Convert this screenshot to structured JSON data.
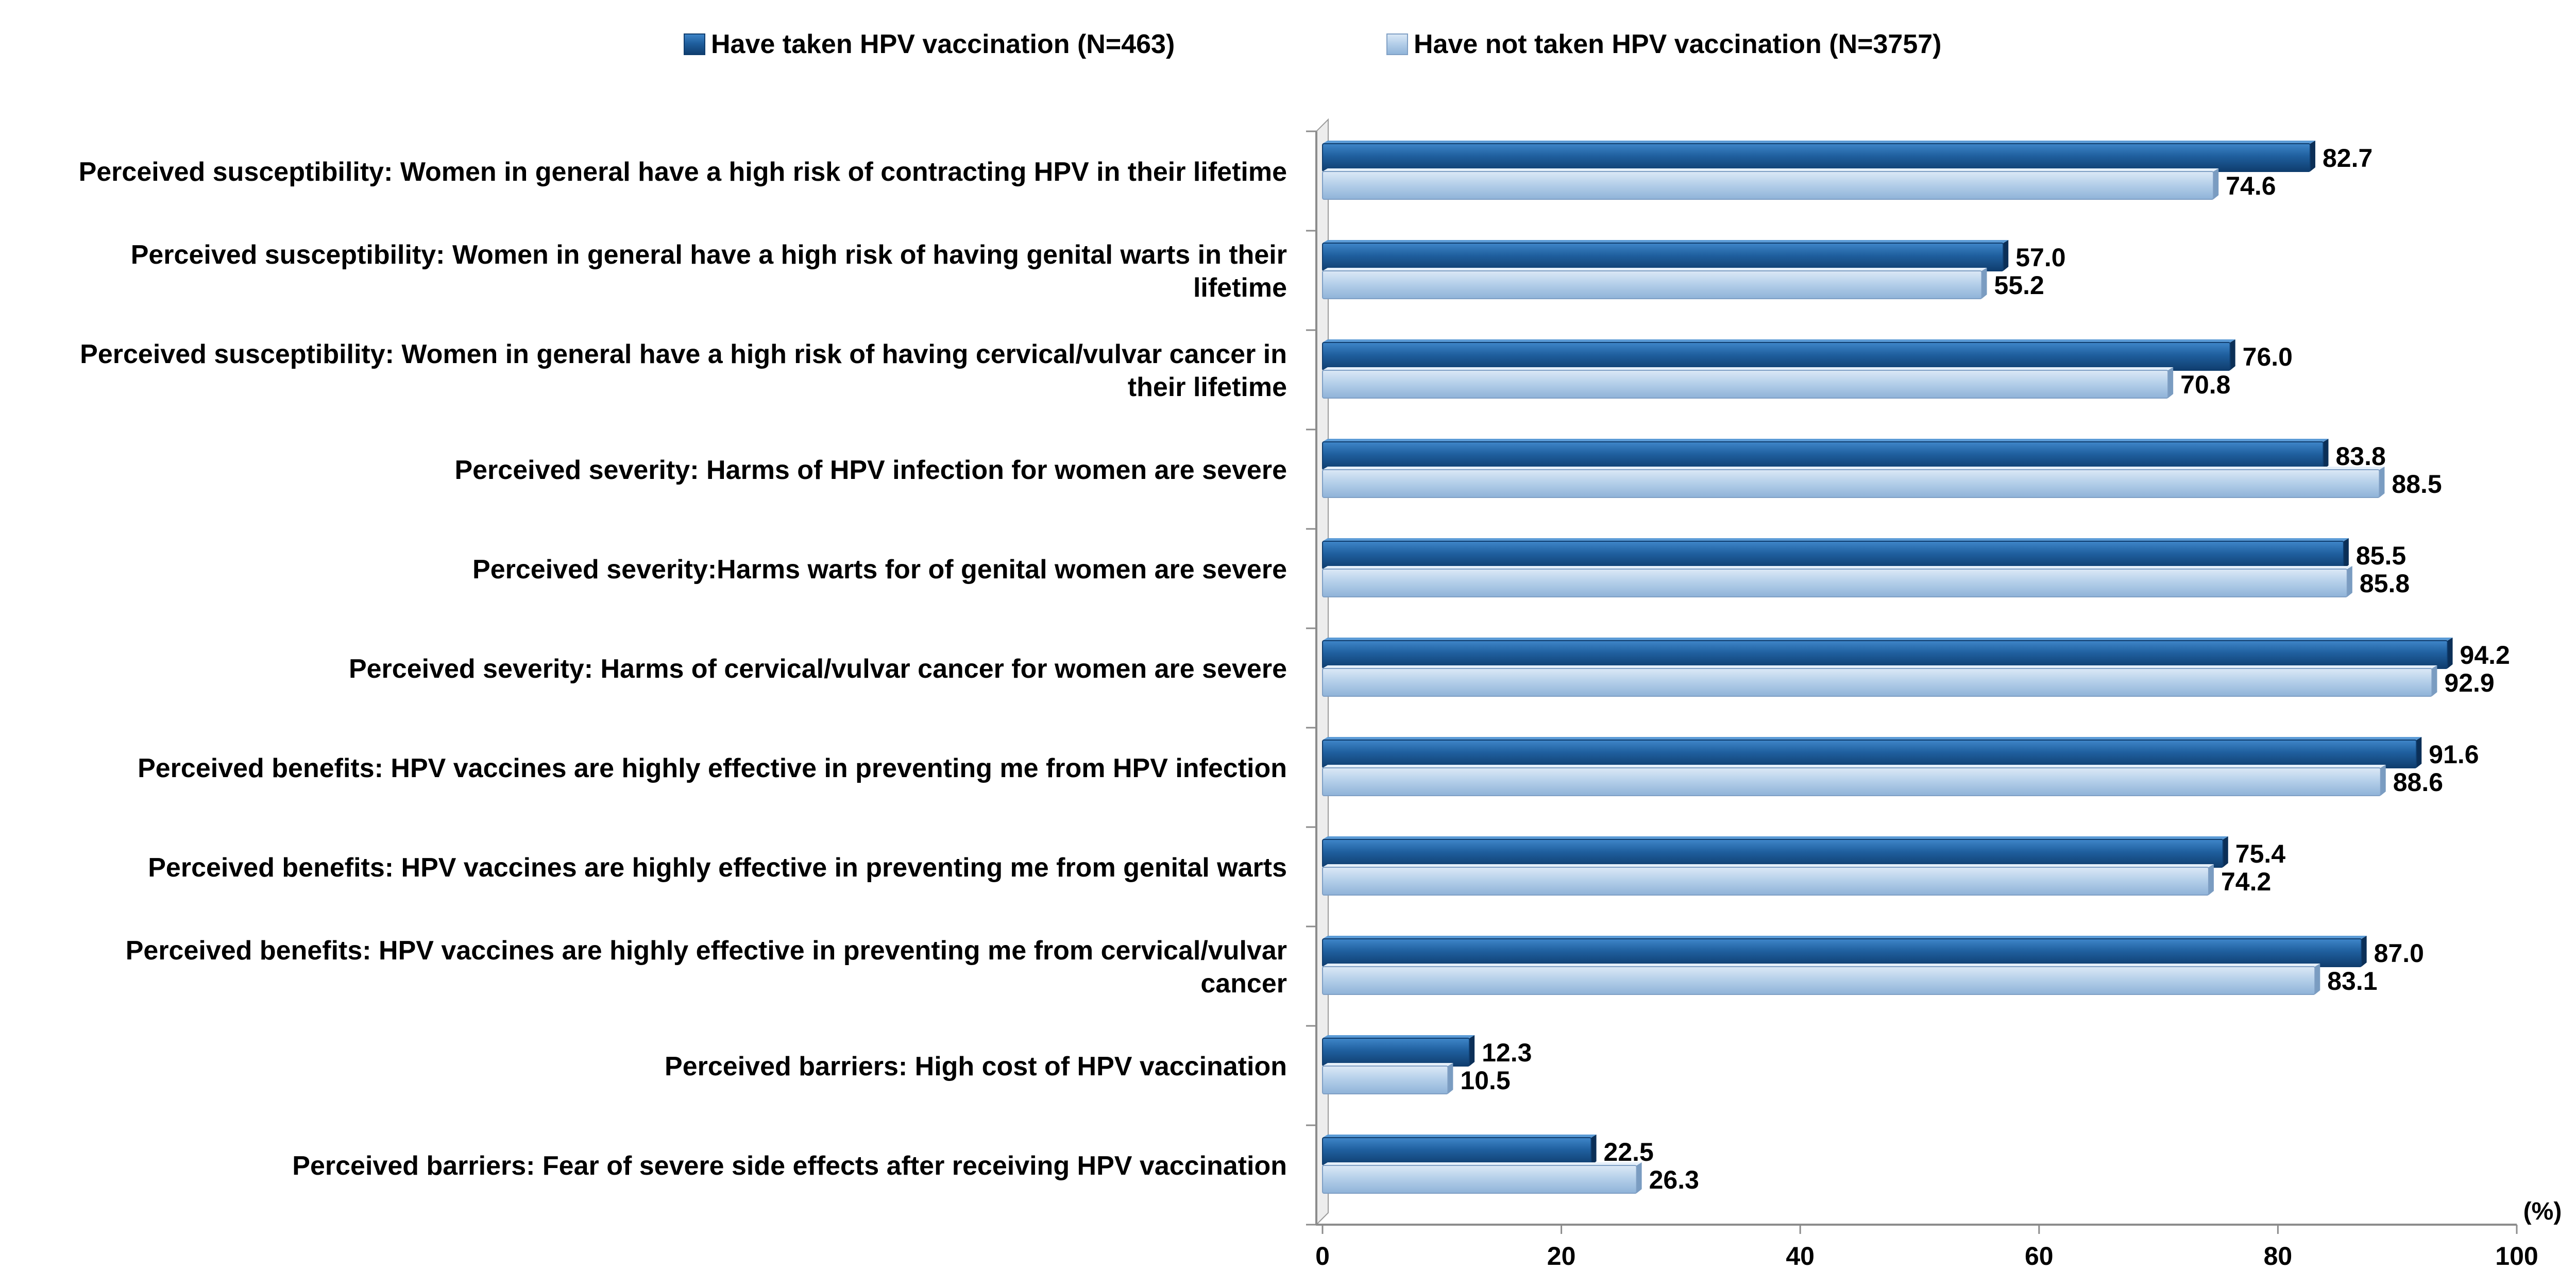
{
  "chart_data": {
    "type": "bar",
    "orientation": "horizontal",
    "title": "",
    "xlabel": "",
    "ylabel": "",
    "unit_label": "(%)",
    "xlim": [
      0,
      100
    ],
    "xticks": [
      0,
      20,
      40,
      60,
      80,
      100
    ],
    "grid": false,
    "legend_position": "top",
    "categories": [
      [
        "Perceived susceptibility: Women in general have a high risk of contracting HPV in their lifetime"
      ],
      [
        "Perceived susceptibility: Women in general have a high risk of having genital warts in their",
        "lifetime"
      ],
      [
        "Perceived susceptibility: Women in general have a high risk of having cervical/vulvar cancer in",
        "their lifetime"
      ],
      [
        "Perceived severity: Harms of HPV infection for women are severe"
      ],
      [
        "Perceived severity:Harms warts for of genital women are severe"
      ],
      [
        "Perceived severity: Harms of cervical/vulvar cancer for women are severe"
      ],
      [
        "Perceived benefits: HPV vaccines are highly effective in preventing me from HPV infection"
      ],
      [
        "Perceived benefits: HPV vaccines are highly effective in preventing me from genital warts"
      ],
      [
        "Perceived benefits: HPV vaccines are highly effective in preventing me from cervical/vulvar",
        "cancer"
      ],
      [
        "Perceived barriers: High cost of HPV vaccination"
      ],
      [
        "Perceived barriers: Fear of severe side effects after receiving HPV vaccination"
      ]
    ],
    "series": [
      {
        "name": "Have taken HPV vaccination (N=463)",
        "color": "#1f5f9e",
        "values": [
          82.7,
          57.0,
          76.0,
          83.8,
          85.5,
          94.2,
          91.6,
          75.4,
          87.0,
          12.3,
          22.5
        ],
        "labels": [
          "82.7",
          "57.0",
          "76.0",
          "83.8",
          "85.5",
          "94.2",
          "91.6",
          "75.4",
          "87.0",
          "12.3",
          "22.5"
        ]
      },
      {
        "name": "Have not taken HPV vaccination (N=3757)",
        "color": "#b6d0ea",
        "values": [
          74.6,
          55.2,
          70.8,
          88.5,
          85.8,
          92.9,
          88.6,
          74.2,
          83.1,
          10.5,
          26.3
        ],
        "labels": [
          "74.6",
          "55.2",
          "70.8",
          "88.5",
          "85.8",
          "92.9",
          "88.6",
          "74.2",
          "83.1",
          "10.5",
          "26.3"
        ]
      }
    ]
  }
}
